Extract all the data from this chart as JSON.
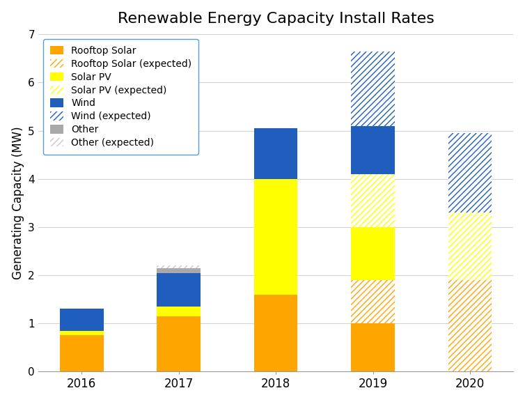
{
  "title": "Renewable Energy Capacity Install Rates",
  "ylabel": "Generating Capacity (MW)",
  "years": [
    2016,
    2017,
    2018,
    2019,
    2020
  ],
  "ylim": [
    0,
    7
  ],
  "yticks": [
    0,
    1,
    2,
    3,
    4,
    5,
    6,
    7
  ],
  "bar_width": 0.45,
  "colors": {
    "rooftop_solar": "#FFA500",
    "rooftop_solar_exp": "#FFA500",
    "solar_pv": "#FFFF00",
    "solar_pv_exp": "#FFFF00",
    "wind": "#1F5EBD",
    "wind_exp": "#1F5EBD",
    "other": "#A9A9A9",
    "other_exp": "#C8C8C8"
  },
  "data": {
    "rooftop_solar": [
      0.75,
      1.15,
      1.6,
      1.0,
      0.0
    ],
    "rooftop_solar_exp": [
      0.0,
      0.0,
      0.0,
      0.9,
      1.9
    ],
    "solar_pv": [
      0.1,
      0.2,
      2.4,
      1.1,
      0.0
    ],
    "solar_pv_exp": [
      0.0,
      0.0,
      0.0,
      1.1,
      1.4
    ],
    "wind": [
      0.45,
      0.7,
      1.05,
      1.0,
      0.0
    ],
    "wind_exp": [
      0.0,
      0.0,
      0.0,
      1.55,
      1.65
    ],
    "other": [
      0.0,
      0.1,
      0.0,
      0.0,
      0.0
    ],
    "other_exp": [
      0.0,
      0.05,
      0.0,
      0.0,
      0.0
    ]
  },
  "background_color": "#FFFFFF",
  "grid_color": "#D3D3D3"
}
